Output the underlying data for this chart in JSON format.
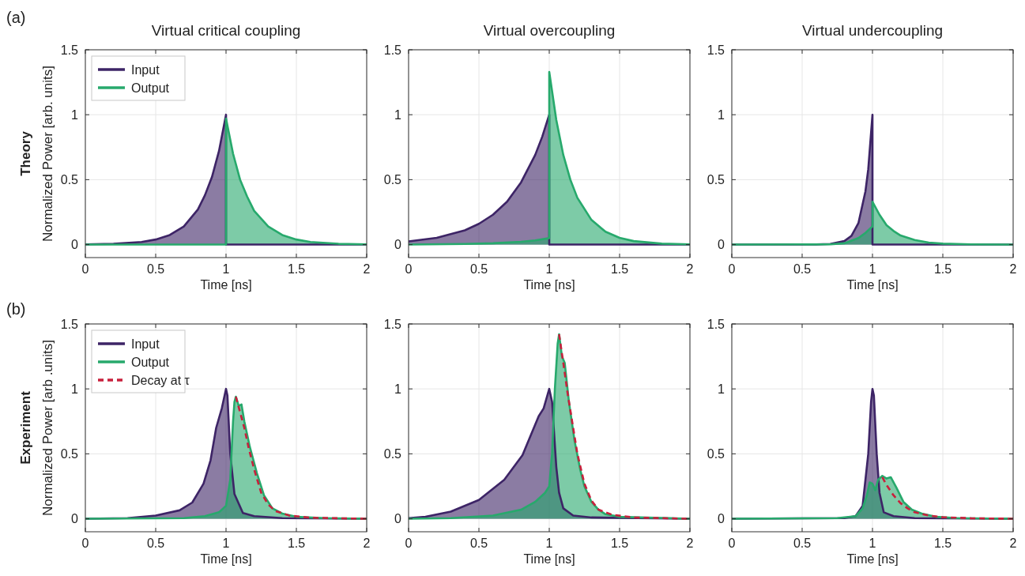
{
  "chart_data": [
    {
      "type": "area",
      "title": "Virtual critical coupling",
      "xlabel": "Time [ns]",
      "ylabel": "Normalized Power [arb. units]",
      "annotations": [
        "(a)",
        "Theory"
      ],
      "xlim": [
        0,
        2
      ],
      "ylim": [
        -0.1,
        1.5
      ],
      "xticks": [
        0,
        0.5,
        1,
        1.5,
        2
      ],
      "yticks": [
        0,
        0.5,
        1,
        1.5
      ],
      "grid": true,
      "legend": "top left",
      "series": [
        {
          "name": "Input",
          "color": "#3d2466",
          "x": [
            0,
            0.2,
            0.4,
            0.5,
            0.6,
            0.7,
            0.8,
            0.85,
            0.9,
            0.95,
            1,
            1,
            2
          ],
          "values": [
            0.002,
            0.006,
            0.02,
            0.039,
            0.074,
            0.14,
            0.27,
            0.38,
            0.52,
            0.72,
            1,
            0,
            0
          ]
        },
        {
          "name": "Output",
          "color": "#27a96c",
          "x": [
            0,
            1,
            1,
            1.05,
            1.1,
            1.15,
            1.2,
            1.3,
            1.4,
            1.5,
            1.6,
            1.8,
            2
          ],
          "values": [
            0,
            0,
            0.97,
            0.7,
            0.5,
            0.37,
            0.26,
            0.14,
            0.074,
            0.039,
            0.02,
            0.006,
            0.002
          ]
        }
      ]
    },
    {
      "type": "area",
      "title": "Virtual overcoupling",
      "xlabel": "Time [ns]",
      "xlim": [
        0,
        2
      ],
      "ylim": [
        -0.1,
        1.5
      ],
      "xticks": [
        0,
        0.5,
        1,
        1.5,
        2
      ],
      "yticks": [
        0,
        0.5,
        1,
        1.5
      ],
      "grid": true,
      "series": [
        {
          "color": "#3d2466",
          "x": [
            0,
            0.2,
            0.4,
            0.5,
            0.6,
            0.7,
            0.8,
            0.9,
            0.95,
            1,
            1,
            2
          ],
          "values": [
            0.025,
            0.052,
            0.11,
            0.16,
            0.23,
            0.33,
            0.48,
            0.69,
            0.83,
            1,
            0,
            0
          ]
        },
        {
          "color": "#27a96c",
          "x": [
            0,
            0.4,
            0.6,
            0.8,
            0.9,
            1,
            1,
            1.05,
            1.1,
            1.15,
            1.2,
            1.3,
            1.4,
            1.5,
            1.6,
            1.8,
            2
          ],
          "values": [
            0,
            0.005,
            0.01,
            0.022,
            0.032,
            0.05,
            1.33,
            0.96,
            0.69,
            0.5,
            0.36,
            0.19,
            0.099,
            0.052,
            0.027,
            0.007,
            0.002
          ]
        }
      ]
    },
    {
      "type": "area",
      "title": "Virtual undercoupling",
      "xlabel": "Time [ns]",
      "xlim": [
        0,
        2
      ],
      "ylim": [
        -0.1,
        1.5
      ],
      "xticks": [
        0,
        0.5,
        1,
        1.5,
        2
      ],
      "yticks": [
        0,
        0.5,
        1,
        1.5
      ],
      "grid": true,
      "series": [
        {
          "color": "#3d2466",
          "x": [
            0,
            0.6,
            0.7,
            0.8,
            0.85,
            0.9,
            0.95,
            0.97,
            1,
            1,
            2
          ],
          "values": [
            0,
            0.001,
            0.005,
            0.027,
            0.067,
            0.165,
            0.41,
            0.58,
            1,
            0,
            0
          ]
        },
        {
          "color": "#27a96c",
          "x": [
            0,
            0.7,
            0.8,
            0.9,
            0.95,
            1,
            1,
            1.05,
            1.1,
            1.15,
            1.2,
            1.3,
            1.4,
            1.5,
            1.7,
            2
          ],
          "values": [
            0,
            0.002,
            0.01,
            0.05,
            0.09,
            0.14,
            0.33,
            0.23,
            0.15,
            0.105,
            0.07,
            0.035,
            0.016,
            0.007,
            0.002,
            0
          ]
        }
      ]
    },
    {
      "type": "area",
      "xlabel": "Time [ns]",
      "ylabel": "Normalized Power [arb .units]",
      "annotations": [
        "(b)",
        "Experiment"
      ],
      "xlim": [
        0,
        2
      ],
      "ylim": [
        -0.1,
        1.5
      ],
      "xticks": [
        0,
        0.5,
        1,
        1.5,
        2
      ],
      "yticks": [
        0,
        0.5,
        1,
        1.5
      ],
      "grid": true,
      "legend": "top left",
      "series": [
        {
          "name": "Input",
          "color": "#3d2466",
          "x": [
            0,
            0.3,
            0.5,
            0.67,
            0.76,
            0.84,
            0.89,
            0.93,
            0.97,
            1.0,
            1.01,
            1.03,
            1.06,
            1.12,
            1.2,
            1.4,
            2
          ],
          "values": [
            0,
            0.005,
            0.025,
            0.065,
            0.125,
            0.27,
            0.45,
            0.7,
            0.85,
            1.0,
            0.95,
            0.5,
            0.19,
            0.045,
            0.02,
            0.005,
            0
          ]
        },
        {
          "name": "Output",
          "color": "#27a96c",
          "x": [
            0,
            0.7,
            0.85,
            0.95,
            1.0,
            1.03,
            1.05,
            1.06,
            1.07,
            1.09,
            1.11,
            1.13,
            1.17,
            1.22,
            1.27,
            1.33,
            1.4,
            1.5,
            1.7,
            2
          ],
          "values": [
            0,
            0.005,
            0.02,
            0.05,
            0.1,
            0.3,
            0.75,
            0.9,
            0.94,
            0.87,
            0.88,
            0.75,
            0.55,
            0.35,
            0.18,
            0.08,
            0.04,
            0.015,
            0.005,
            0
          ]
        },
        {
          "name": "Decay at τ",
          "type": "line",
          "line_style": "dashed",
          "color": "#c8203c",
          "x": [
            1.07,
            1.1,
            1.13,
            1.16,
            1.2,
            1.25,
            1.3,
            1.35,
            1.45,
            1.6,
            2
          ],
          "values": [
            0.94,
            0.82,
            0.7,
            0.55,
            0.38,
            0.2,
            0.11,
            0.06,
            0.025,
            0.008,
            0
          ]
        }
      ]
    },
    {
      "type": "area",
      "xlabel": "Time [ns]",
      "xlim": [
        0,
        2
      ],
      "ylim": [
        -0.1,
        1.5
      ],
      "xticks": [
        0,
        0.5,
        1,
        1.5,
        2
      ],
      "yticks": [
        0,
        0.5,
        1,
        1.5
      ],
      "grid": true,
      "series": [
        {
          "color": "#3d2466",
          "x": [
            0,
            0.12,
            0.3,
            0.5,
            0.68,
            0.81,
            0.925,
            0.96,
            1.0,
            1.02,
            1.05,
            1.07,
            1.1,
            1.17,
            1.3,
            2
          ],
          "values": [
            0.005,
            0.015,
            0.055,
            0.145,
            0.3,
            0.49,
            0.79,
            0.85,
            1.0,
            0.9,
            0.4,
            0.2,
            0.08,
            0.025,
            0.01,
            0
          ]
        },
        {
          "color": "#27a96c",
          "x": [
            0,
            0.3,
            0.6,
            0.8,
            0.9,
            0.97,
            1.0,
            1.02,
            1.04,
            1.06,
            1.07,
            1.09,
            1.11,
            1.14,
            1.18,
            1.22,
            1.25,
            1.3,
            1.35,
            1.4,
            1.5,
            2
          ],
          "values": [
            0,
            0.005,
            0.025,
            0.07,
            0.13,
            0.2,
            0.25,
            0.5,
            1.0,
            1.35,
            1.42,
            1.25,
            1.2,
            0.9,
            0.6,
            0.38,
            0.25,
            0.13,
            0.07,
            0.035,
            0.015,
            0
          ]
        },
        {
          "type": "line",
          "line_style": "dashed",
          "color": "#c8203c",
          "x": [
            1.07,
            1.1,
            1.13,
            1.17,
            1.2,
            1.25,
            1.3,
            1.35,
            1.45,
            1.6,
            2
          ],
          "values": [
            1.42,
            1.2,
            0.97,
            0.7,
            0.5,
            0.27,
            0.14,
            0.07,
            0.03,
            0.01,
            0
          ]
        }
      ]
    },
    {
      "type": "area",
      "xlabel": "Time [ns]",
      "xlim": [
        0,
        2
      ],
      "ylim": [
        -0.1,
        1.5
      ],
      "xticks": [
        0,
        0.5,
        1,
        1.5,
        2
      ],
      "yticks": [
        0,
        0.5,
        1,
        1.5
      ],
      "grid": true,
      "series": [
        {
          "color": "#3d2466",
          "x": [
            0,
            0.8,
            0.88,
            0.93,
            0.95,
            0.97,
            0.99,
            1.0,
            1.01,
            1.03,
            1.05,
            1.08,
            1.15,
            1.3,
            2
          ],
          "values": [
            0,
            0.005,
            0.02,
            0.1,
            0.3,
            0.5,
            0.9,
            1.0,
            0.95,
            0.5,
            0.2,
            0.05,
            0.02,
            0.005,
            0
          ]
        },
        {
          "color": "#27a96c",
          "x": [
            0,
            0.75,
            0.88,
            0.93,
            0.96,
            0.98,
            1.0,
            1.02,
            1.04,
            1.07,
            1.1,
            1.13,
            1.17,
            1.22,
            1.28,
            1.35,
            1.45,
            1.6,
            2
          ],
          "values": [
            0,
            0.005,
            0.02,
            0.08,
            0.18,
            0.28,
            0.27,
            0.22,
            0.3,
            0.33,
            0.31,
            0.32,
            0.24,
            0.13,
            0.07,
            0.04,
            0.015,
            0.005,
            0
          ]
        },
        {
          "type": "line",
          "line_style": "dashed",
          "color": "#c8203c",
          "x": [
            1.07,
            1.1,
            1.15,
            1.2,
            1.25,
            1.3,
            1.4,
            1.5,
            1.7,
            2
          ],
          "values": [
            0.32,
            0.26,
            0.18,
            0.12,
            0.08,
            0.05,
            0.025,
            0.012,
            0.004,
            0
          ]
        }
      ]
    }
  ]
}
